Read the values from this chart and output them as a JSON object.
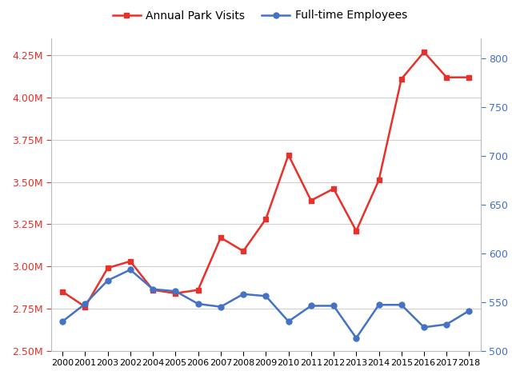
{
  "year_labels": [
    "2000",
    "2001",
    "2003",
    "2002",
    "2004",
    "2005",
    "2006",
    "2007",
    "2008",
    "2009",
    "2010",
    "2011",
    "2012",
    "2013",
    "2014",
    "2015",
    "2016",
    "2017",
    "2018"
  ],
  "visits": [
    2850000,
    2760000,
    2990000,
    3030000,
    2860000,
    2840000,
    2860000,
    3170000,
    3090000,
    3280000,
    3660000,
    3390000,
    3460000,
    3210000,
    3510000,
    4110000,
    4270000,
    4120000,
    4120000
  ],
  "employees": [
    530,
    548,
    572,
    583,
    563,
    561,
    548,
    545,
    558,
    556,
    530,
    546,
    546,
    513,
    547,
    547,
    524,
    527,
    541
  ],
  "visits_color": "#e8312a",
  "employees_color": "#4472c4",
  "left_ylim": [
    2500000,
    4350000
  ],
  "right_ylim": [
    500,
    820
  ],
  "left_yticks": [
    2500000,
    2750000,
    3000000,
    3250000,
    3500000,
    3750000,
    4000000,
    4250000
  ],
  "right_yticks": [
    500,
    550,
    600,
    650,
    700,
    750,
    800
  ],
  "left_ytick_labels": [
    "2.50M",
    "2.75M",
    "3.00M",
    "3.25M",
    "3.50M",
    "3.75M",
    "4.00M",
    "4.25M"
  ],
  "right_ytick_labels": [
    "500",
    "550",
    "600",
    "650",
    "700",
    "750",
    "800"
  ],
  "visits_label": "Annual Park Visits",
  "employees_label": "Full-time Employees",
  "marker_size": 5,
  "line_width": 1.8,
  "bg_color": "#ffffff",
  "grid_color": "#d0d0d0",
  "left_tick_color": "#e8312a",
  "right_tick_color": "#4472c4"
}
